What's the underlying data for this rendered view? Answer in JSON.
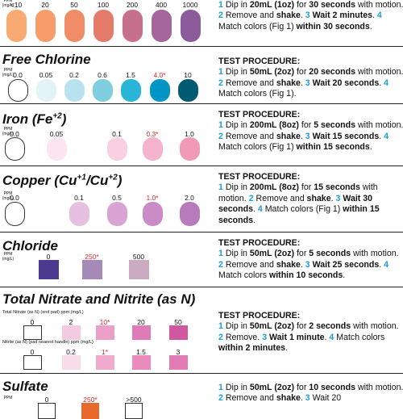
{
  "sections": [
    {
      "unit": "PPM (mg/L)",
      "shape": "pill",
      "labels": [
        "<10",
        "20",
        "50",
        "100",
        "200",
        "400",
        "1000"
      ],
      "colors": [
        "#f9aa72",
        "#f79d6b",
        "#f08c66",
        "#e57b6b",
        "#c7708d",
        "#a5679b",
        "#8b5b9b"
      ],
      "procedure": [
        [
          {
            "t": "1",
            "n": true
          },
          {
            "t": " Dip in "
          },
          {
            "t": "20mL (1oz)",
            "b": true
          },
          {
            "t": " for "
          },
          {
            "t": "30 seconds",
            "b": true
          },
          {
            "t": " with motion. "
          }
        ],
        [
          {
            "t": "2",
            "n": true
          },
          {
            "t": " Remove and "
          },
          {
            "t": "shake",
            "b": true
          },
          {
            "t": ". "
          }
        ],
        [
          {
            "t": "3",
            "n": true
          },
          {
            "t": " Wait 2 minutes",
            "b": true
          },
          {
            "t": ". "
          }
        ],
        [
          {
            "t": "4",
            "n": true
          },
          {
            "t": " Match colors (Fig 1) "
          },
          {
            "t": "within 30 seconds",
            "b": true
          },
          {
            "t": "."
          }
        ]
      ]
    },
    {
      "title": [
        {
          "t": "Free Chlorine"
        }
      ],
      "unit": "PPM (mg/L)",
      "heading": "TEST PROCEDURE:",
      "shape": "pill",
      "labels": [
        "0.0",
        "0.05",
        "0.2",
        "0.6",
        "1.5",
        "4.0*",
        "10"
      ],
      "colors": [
        "#ffffff",
        "#e3f3f8",
        "#b8e3ee",
        "#7fcfe0",
        "#2ab5d6",
        "#0095c6",
        "#005a72"
      ],
      "procedure": [
        [
          {
            "t": "1",
            "n": true
          },
          {
            "t": " Dip in "
          },
          {
            "t": "50mL (2oz)",
            "b": true
          },
          {
            "t": " for "
          },
          {
            "t": "20 seconds",
            "b": true
          },
          {
            "t": " with motion. "
          }
        ],
        [
          {
            "t": "2",
            "n": true
          },
          {
            "t": " Remove and "
          },
          {
            "t": "shake",
            "b": true
          },
          {
            "t": ". "
          }
        ],
        [
          {
            "t": "3",
            "n": true
          },
          {
            "t": " Wait 20 seconds",
            "b": true
          },
          {
            "t": ". "
          }
        ],
        [
          {
            "t": "4",
            "n": true
          },
          {
            "t": " Match colors (Fig 1)."
          }
        ]
      ]
    },
    {
      "title": [
        {
          "t": "Iron (Fe"
        },
        {
          "t": "+2",
          "sup": true
        },
        {
          "t": ")"
        }
      ],
      "unit": "PPM (mg/L)",
      "heading": "TEST PROCEDURE:",
      "shape": "pill",
      "labels": [
        "0.0",
        "0.05",
        "0.1",
        "0.3*",
        "1.0"
      ],
      "colors": [
        "#ffffff",
        "#fce5ee",
        "#f9d0e1",
        "#f5b3cd",
        "#f09ab8"
      ],
      "procedure": [
        [
          {
            "t": "1",
            "n": true
          },
          {
            "t": " Dip in "
          },
          {
            "t": "200mL (8oz)",
            "b": true
          },
          {
            "t": " for "
          },
          {
            "t": "5 seconds",
            "b": true
          },
          {
            "t": " with motion. "
          }
        ],
        [
          {
            "t": "2",
            "n": true
          },
          {
            "t": " Remove and "
          },
          {
            "t": "shake",
            "b": true
          },
          {
            "t": ". "
          }
        ],
        [
          {
            "t": "3",
            "n": true
          },
          {
            "t": " Wait 15 seconds",
            "b": true
          },
          {
            "t": ". "
          }
        ],
        [
          {
            "t": "4",
            "n": true
          },
          {
            "t": " Match colors (Fig 1) "
          },
          {
            "t": "within 15 seconds",
            "b": true
          },
          {
            "t": "."
          }
        ]
      ]
    },
    {
      "title": [
        {
          "t": "Copper (Cu"
        },
        {
          "t": "+1",
          "sup": true
        },
        {
          "t": "/Cu"
        },
        {
          "t": "+2",
          "sup": true
        },
        {
          "t": ")"
        }
      ],
      "unit": "PPM (mg/L)",
      "heading": "TEST PROCEDURE:",
      "shape": "pill",
      "labels": [
        "0.0",
        "0.1",
        "0.5",
        "1.0*",
        "2.0"
      ],
      "colors": [
        "#ffffff",
        "#e6c0e0",
        "#d9a4d3",
        "#c98cc6",
        "#b77abb"
      ],
      "procedure": [
        [
          {
            "t": "1",
            "n": true
          },
          {
            "t": " Dip in "
          },
          {
            "t": "200mL (8oz)",
            "b": true
          },
          {
            "t": " for "
          },
          {
            "t": "15 seconds",
            "b": true
          },
          {
            "t": " with motion. "
          }
        ],
        [
          {
            "t": "2",
            "n": true
          },
          {
            "t": " Remove and "
          },
          {
            "t": "shake",
            "b": true
          },
          {
            "t": ". "
          }
        ],
        [
          {
            "t": "3",
            "n": true
          },
          {
            "t": " Wait 30 seconds",
            "b": true
          },
          {
            "t": ". "
          }
        ],
        [
          {
            "t": "4",
            "n": true
          },
          {
            "t": " Match colors (Fig 1) "
          },
          {
            "t": "within 15 seconds",
            "b": true
          },
          {
            "t": "."
          }
        ]
      ]
    },
    {
      "title": [
        {
          "t": "Chloride"
        }
      ],
      "unit": "PPM (mg/L)",
      "heading": "TEST PROCEDURE:",
      "shape": "square",
      "labels": [
        "0",
        "250*",
        "500"
      ],
      "colors": [
        "#4b3a8f",
        "#a58ab8",
        "#caabc1"
      ],
      "procedure": [
        [
          {
            "t": "1",
            "n": true
          },
          {
            "t": " Dip in "
          },
          {
            "t": "50mL (2oz)",
            "b": true
          },
          {
            "t": " for "
          },
          {
            "t": "5 seconds",
            "b": true
          },
          {
            "t": " with motion. "
          }
        ],
        [
          {
            "t": "2",
            "n": true
          },
          {
            "t": " Remove and "
          },
          {
            "t": "shake",
            "b": true
          },
          {
            "t": ". "
          }
        ],
        [
          {
            "t": "3",
            "n": true
          },
          {
            "t": " Wait 25 seconds",
            "b": true
          },
          {
            "t": ". "
          }
        ],
        [
          {
            "t": "4",
            "n": true
          },
          {
            "t": " Match colors "
          },
          {
            "t": "within 10 seconds",
            "b": true
          },
          {
            "t": "."
          }
        ]
      ]
    },
    {
      "title": [
        {
          "t": "Total Nitrate and Nitrite (as N)"
        }
      ],
      "heading": "TEST PROCEDURE:",
      "shape": "square",
      "rows": [
        {
          "caption": "Total Nitrate (as N) (end pad) ppm (mg/L)",
          "labels": [
            "0",
            "2",
            "10*",
            "20",
            "50"
          ],
          "colors": [
            "#ffffff",
            "#f3cadf",
            "#eba0c8",
            "#df7bb6",
            "#cf589f"
          ]
        },
        {
          "caption": "Nitrite (as N) (pad nearest handle) ppm (mg/L)",
          "labels": [
            "0",
            "0.2",
            "1*",
            "1.5",
            "3"
          ],
          "colors": [
            "#ffffff",
            "#f8dde9",
            "#f0aacd",
            "#e98cbd",
            "#e27cb5"
          ]
        }
      ],
      "procedure": [
        [
          {
            "t": "1",
            "n": true
          },
          {
            "t": " Dip in "
          },
          {
            "t": "50mL (2oz)",
            "b": true
          },
          {
            "t": " for "
          },
          {
            "t": "2 seconds",
            "b": true
          },
          {
            "t": " with motion. "
          }
        ],
        [
          {
            "t": "2",
            "n": true
          },
          {
            "t": " Remove. "
          }
        ],
        [
          {
            "t": "3",
            "n": true
          },
          {
            "t": " Wait 1 minute",
            "b": true
          },
          {
            "t": ". "
          }
        ],
        [
          {
            "t": "4",
            "n": true
          },
          {
            "t": " Match colors "
          },
          {
            "t": "within 2 minutes",
            "b": true
          },
          {
            "t": "."
          }
        ]
      ]
    },
    {
      "title": [
        {
          "t": "Sulfate"
        }
      ],
      "unit": "PPM",
      "shape": "square",
      "labels": [
        "0",
        "250*",
        ">500"
      ],
      "colors": [
        "#ffffff",
        "#e8682e",
        "#ffffff"
      ],
      "procedure": [
        [
          {
            "t": "1",
            "n": true
          },
          {
            "t": " Dip in "
          },
          {
            "t": "50mL (2oz)",
            "b": true
          },
          {
            "t": " for "
          },
          {
            "t": "10 seconds",
            "b": true
          },
          {
            "t": " with motion. "
          }
        ],
        [
          {
            "t": "2",
            "n": true
          },
          {
            "t": " Remove and "
          },
          {
            "t": "shake",
            "b": true
          },
          {
            "t": ". "
          }
        ],
        [
          {
            "t": "3",
            "n": true
          },
          {
            "t": " Wait 20"
          }
        ]
      ]
    }
  ]
}
